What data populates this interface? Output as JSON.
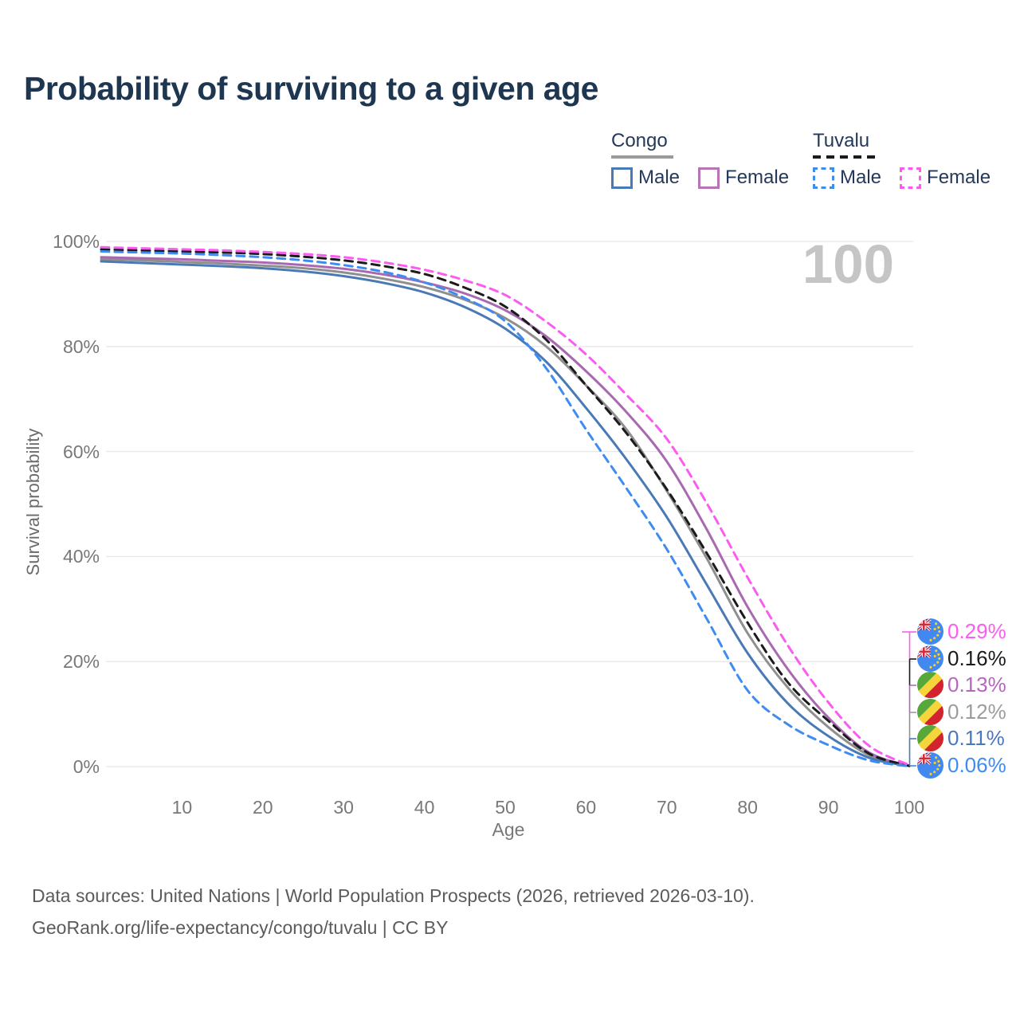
{
  "title": "Probability of surviving to a given age",
  "age_indicator": "100",
  "legend": {
    "groups": [
      {
        "label": "Congo",
        "line_color": "#9a9a9a",
        "line_style": "solid",
        "entries": [
          {
            "label": "Male",
            "color": "#4a7ab5",
            "style": "solid"
          },
          {
            "label": "Female",
            "color": "#b575b5",
            "style": "solid"
          }
        ]
      },
      {
        "label": "Tuvalu",
        "line_color": "#1b1b1b",
        "line_style": "dashed",
        "entries": [
          {
            "label": "Male",
            "color": "#3e8bf2",
            "style": "dashed"
          },
          {
            "label": "Female",
            "color": "#fb5cf0",
            "style": "dashed"
          }
        ]
      }
    ]
  },
  "axes": {
    "y_label": "Survival probability",
    "x_label": "Age",
    "y_ticks": [
      {
        "label": "0%",
        "value": 0
      },
      {
        "label": "20%",
        "value": 20
      },
      {
        "label": "40%",
        "value": 40
      },
      {
        "label": "60%",
        "value": 60
      },
      {
        "label": "80%",
        "value": 80
      },
      {
        "label": "100%",
        "value": 100
      }
    ],
    "x_ticks": [
      {
        "label": "10",
        "value": 10
      },
      {
        "label": "20",
        "value": 20
      },
      {
        "label": "30",
        "value": 30
      },
      {
        "label": "40",
        "value": 40
      },
      {
        "label": "50",
        "value": 50
      },
      {
        "label": "60",
        "value": 60
      },
      {
        "label": "70",
        "value": 70
      },
      {
        "label": "80",
        "value": 80
      },
      {
        "label": "90",
        "value": 90
      },
      {
        "label": "100",
        "value": 100
      }
    ]
  },
  "end_labels": [
    {
      "country": "Tuvalu",
      "series": "Tuvalu Female",
      "value": "0.29%",
      "color": "#fb5cf0"
    },
    {
      "country": "Tuvalu",
      "series": "Tuvalu",
      "value": "0.16%",
      "color": "#1b1b1b"
    },
    {
      "country": "Congo",
      "series": "Congo Female",
      "value": "0.13%",
      "color": "#b567bd"
    },
    {
      "country": "Congo",
      "series": "Congo",
      "value": "0.12%",
      "color": "#9c9c9c"
    },
    {
      "country": "Congo",
      "series": "Congo Male",
      "value": "0.11%",
      "color": "#4a77bd"
    },
    {
      "country": "Tuvalu",
      "series": "Tuvalu Male",
      "value": "0.06%",
      "color": "#3e8bf2"
    }
  ],
  "source": {
    "line1": "Data sources: United Nations | World Population Prospects (2026, retrieved 2026-03-10).",
    "line2": "GeoRank.org/life-expectancy/congo/tuvalu | CC BY"
  },
  "chart_data": {
    "type": "line",
    "title": "Probability of surviving to a given age",
    "xlabel": "Age",
    "ylabel": "Survival probability",
    "xlim": [
      0,
      100
    ],
    "ylim": [
      0,
      100
    ],
    "grid": "horizontal",
    "legend_position": "top-right",
    "x": [
      0,
      5,
      10,
      15,
      20,
      25,
      30,
      35,
      40,
      45,
      50,
      55,
      60,
      65,
      70,
      75,
      80,
      85,
      90,
      95,
      100
    ],
    "series": [
      {
        "name": "Congo – All",
        "country": "Congo",
        "sex": "All",
        "color": "#8f8f8f",
        "dash": false,
        "values": [
          96.6,
          96.4,
          96.1,
          95.8,
          95.4,
          94.9,
          94.1,
          92.9,
          91.3,
          88.9,
          85.4,
          80.1,
          72.6,
          64.2,
          52.5,
          39.5,
          25.4,
          15.0,
          7.5,
          2.2,
          0.12
        ]
      },
      {
        "name": "Congo – Male",
        "country": "Congo",
        "sex": "Male",
        "color": "#4a7ab5",
        "dash": false,
        "values": [
          96.2,
          95.9,
          95.6,
          95.3,
          94.9,
          94.3,
          93.4,
          92.1,
          90.3,
          87.5,
          83.4,
          77.2,
          68.3,
          58.5,
          47.5,
          34.5,
          21.6,
          12.0,
          5.8,
          1.7,
          0.11
        ]
      },
      {
        "name": "Congo – Female",
        "country": "Congo",
        "sex": "Female",
        "color": "#a869b0",
        "dash": false,
        "values": [
          97.0,
          96.8,
          96.6,
          96.3,
          96.0,
          95.5,
          94.8,
          93.7,
          92.2,
          90.1,
          86.9,
          82.0,
          75.3,
          67.5,
          58.1,
          45.0,
          30.4,
          18.5,
          9.3,
          2.7,
          0.13
        ]
      },
      {
        "name": "Tuvalu – All",
        "country": "Tuvalu",
        "sex": "All",
        "color": "#1b1b1b",
        "dash": true,
        "values": [
          98.5,
          98.3,
          98.1,
          97.9,
          97.6,
          97.1,
          96.4,
          95.3,
          93.8,
          91.2,
          87.6,
          81.4,
          72.6,
          63.5,
          52.8,
          40.5,
          27.4,
          16.0,
          8.7,
          2.5,
          0.16
        ]
      },
      {
        "name": "Tuvalu – Male",
        "country": "Tuvalu",
        "sex": "Male",
        "color": "#3e8bf2",
        "dash": true,
        "values": [
          98.1,
          97.9,
          97.7,
          97.4,
          97.0,
          96.4,
          95.5,
          94.2,
          92.2,
          89.2,
          84.8,
          76.0,
          64.2,
          53.0,
          41.4,
          28.0,
          14.5,
          8.0,
          4.1,
          1.2,
          0.06
        ]
      },
      {
        "name": "Tuvalu – Female",
        "country": "Tuvalu",
        "sex": "Female",
        "color": "#fb5cf0",
        "dash": true,
        "values": [
          98.9,
          98.7,
          98.5,
          98.3,
          98.0,
          97.6,
          97.0,
          96.0,
          94.6,
          92.6,
          89.8,
          84.8,
          78.5,
          70.8,
          62.4,
          50.0,
          36.0,
          23.0,
          12.2,
          4.0,
          0.29
        ]
      }
    ]
  }
}
